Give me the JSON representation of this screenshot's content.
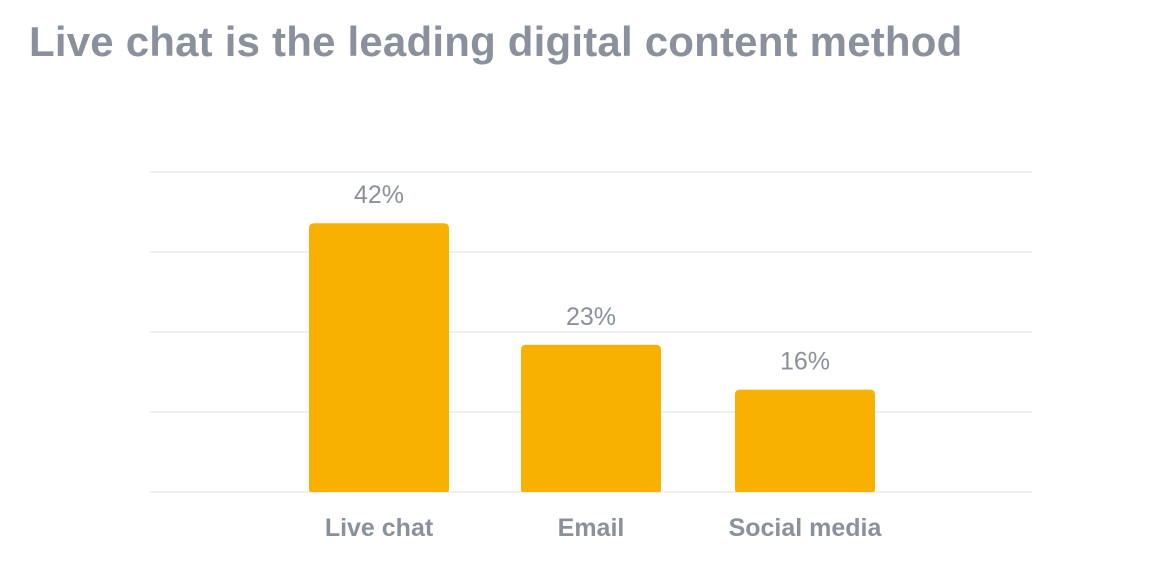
{
  "chart_data": {
    "type": "bar",
    "title": "Live chat is the leading digital content method",
    "categories": [
      "Live chat",
      "Email",
      "Social media"
    ],
    "values": [
      42,
      23,
      16
    ],
    "value_labels": [
      "42%",
      "23%",
      "16%"
    ],
    "xlabel": "",
    "ylabel": "",
    "ylim": [
      0,
      50
    ],
    "grid": true,
    "legend": "none",
    "colors": {
      "bar": "#f8b100",
      "text": "#8a919d",
      "grid": "#e9eaed"
    }
  }
}
